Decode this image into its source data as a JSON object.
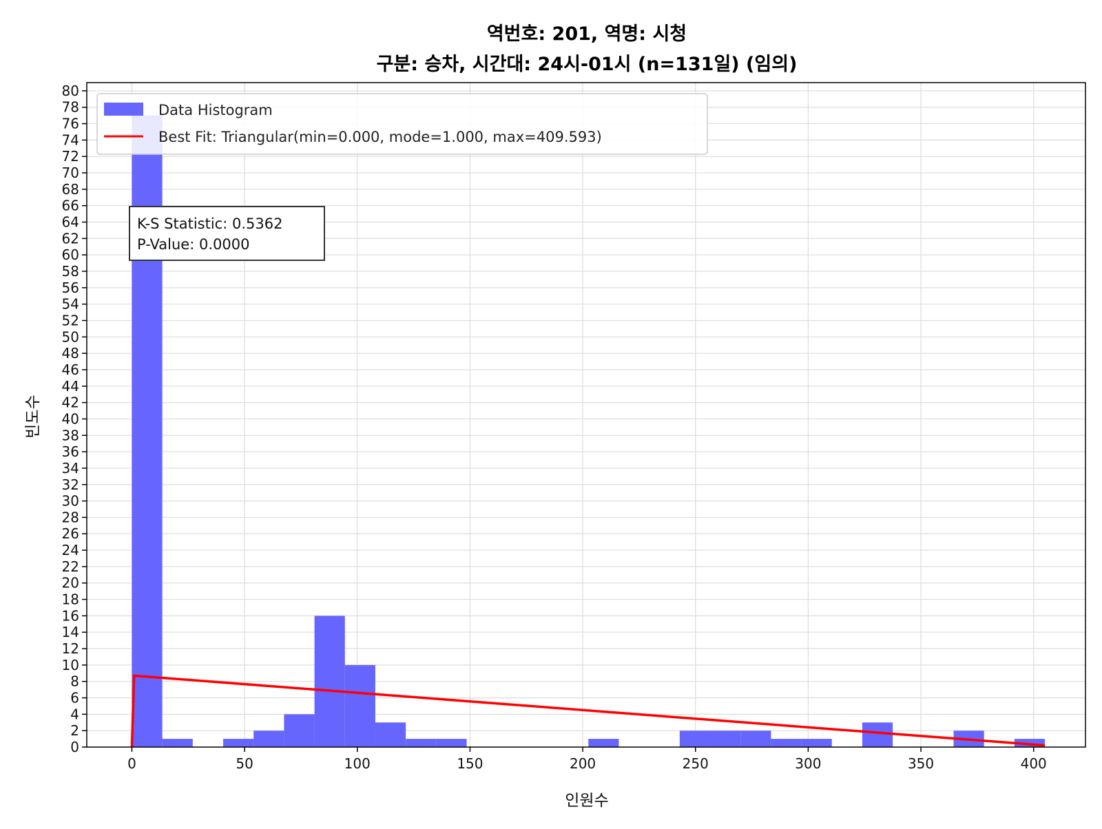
{
  "chart_data": {
    "type": "bar",
    "title_line1": "역번호: 201, 역명: 시청",
    "title_line2": "구분: 승차, 시간대: 24시-01시 (n=131일) (임의)",
    "xlabel": "인원수",
    "ylabel": "빈도수",
    "xlim": [
      -20,
      423
    ],
    "ylim": [
      0,
      81
    ],
    "xticks": [
      0,
      50,
      100,
      150,
      200,
      250,
      300,
      350,
      400
    ],
    "yticks": [
      0,
      2,
      4,
      6,
      8,
      10,
      12,
      14,
      16,
      18,
      20,
      22,
      24,
      26,
      28,
      30,
      32,
      34,
      36,
      38,
      40,
      42,
      44,
      46,
      48,
      50,
      52,
      54,
      56,
      58,
      60,
      62,
      64,
      66,
      68,
      70,
      72,
      74,
      76,
      78,
      80
    ],
    "grid": true,
    "legend_position": "top-left",
    "histogram": {
      "name": "Data Histogram",
      "color": "#6666ff",
      "bin_edges": [
        0,
        13.5,
        27,
        40.5,
        54,
        67.5,
        81,
        94.5,
        108,
        121.5,
        135,
        148.5,
        162,
        175.5,
        189,
        202.5,
        216,
        229.5,
        243,
        256.5,
        270,
        283.5,
        297,
        310.5,
        324,
        337.5,
        351,
        364.5,
        378,
        391.5,
        405
      ],
      "counts": [
        77,
        1,
        0,
        1,
        2,
        4,
        16,
        10,
        3,
        1,
        1,
        0,
        0,
        0,
        0,
        1,
        0,
        0,
        2,
        2,
        2,
        1,
        1,
        0,
        3,
        0,
        0,
        2,
        0,
        1
      ]
    },
    "fit_line": {
      "name": "Best Fit: Triangular(min=0.000, mode=1.000, max=409.593)",
      "color": "#ff0000",
      "x": [
        0,
        1,
        405
      ],
      "y": [
        0,
        8.7,
        0.2
      ]
    },
    "stats_box": {
      "line1": "K-S Statistic: 0.5362",
      "line2": "P-Value: 0.0000"
    }
  }
}
